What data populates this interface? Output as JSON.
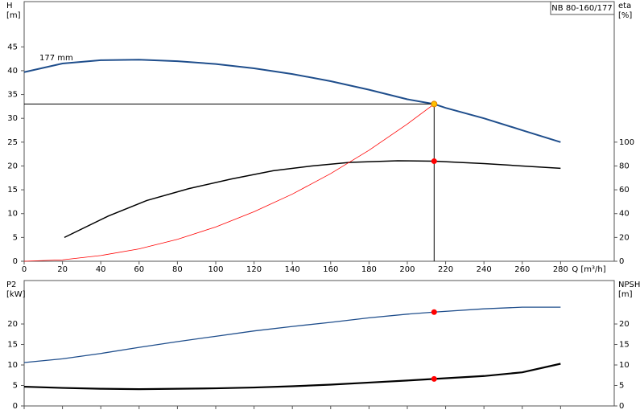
{
  "chart_data": [
    {
      "type": "line",
      "title": "NB 80-160/177",
      "ylabel": "H",
      "yunit": "[m]",
      "y2label": "eta",
      "y2unit": "[%]",
      "xlabel": "Q [m³/h]",
      "annotation": "177 mm",
      "xlim": [
        0,
        308
      ],
      "xticks": [
        0,
        20,
        40,
        60,
        80,
        100,
        120,
        140,
        160,
        180,
        200,
        220,
        240,
        260,
        280
      ],
      "ylim": [
        0,
        54.5
      ],
      "yticks": [
        0,
        5,
        10,
        15,
        20,
        25,
        30,
        35,
        40,
        45
      ],
      "y2lim": [
        0,
        218
      ],
      "y2ticks": [
        0,
        20,
        40,
        60,
        80,
        100
      ],
      "series": [
        {
          "color": "#1f4e8c",
          "width": 2,
          "x": [
            0,
            20,
            40,
            60,
            80,
            100,
            120,
            140,
            160,
            180,
            200,
            214,
            220,
            240,
            260,
            280
          ],
          "values": [
            39.7,
            41.5,
            42.2,
            42.3,
            42.0,
            41.4,
            40.5,
            39.3,
            37.8,
            36.0,
            34.0,
            33.0,
            32.2,
            30.0,
            27.5,
            25.0
          ],
          "duty": {
            "x": 214,
            "y": 33,
            "color": "#ffc000"
          }
        },
        {
          "color": "#000000",
          "width": 1.5,
          "axis": "y2",
          "x": [
            21,
            44,
            64,
            86,
            108,
            130,
            150,
            170,
            195,
            214,
            240,
            260,
            280
          ],
          "values": [
            20,
            38,
            51,
            61,
            69,
            76,
            80,
            83,
            84.4,
            84,
            82,
            80,
            78
          ],
          "duty": {
            "x": 214,
            "y": 84,
            "color": "#ff0000"
          }
        },
        {
          "color": "#ff0000",
          "width": 0.8,
          "x": [
            0,
            20,
            40,
            60,
            80,
            100,
            120,
            140,
            160,
            180,
            200,
            214
          ],
          "values": [
            0,
            0.3,
            1.2,
            2.6,
            4.6,
            7.2,
            10.4,
            14.1,
            18.4,
            23.3,
            28.8,
            33.0
          ]
        }
      ]
    },
    {
      "type": "line",
      "ylabel": "P2",
      "yunit": "[kW]",
      "y2label": "NPSH",
      "y2unit": "[m]",
      "xlim": [
        0,
        308
      ],
      "xticks": [
        0,
        20,
        40,
        60,
        80,
        100,
        120,
        140,
        160,
        180,
        200,
        220,
        240,
        260,
        280
      ],
      "ylim": [
        0,
        30.6
      ],
      "yticks": [
        0,
        5,
        10,
        15,
        20
      ],
      "y2lim": [
        0,
        30.6
      ],
      "y2ticks": [
        0,
        5,
        10,
        15,
        20
      ],
      "series": [
        {
          "color": "#1f4e8c",
          "width": 1.3,
          "x": [
            0,
            20,
            40,
            60,
            80,
            100,
            120,
            140,
            160,
            180,
            200,
            214,
            240,
            260,
            280
          ],
          "values": [
            10.6,
            11.5,
            12.8,
            14.3,
            15.7,
            17.0,
            18.3,
            19.4,
            20.4,
            21.5,
            22.4,
            22.9,
            23.7,
            24.1,
            24.1
          ],
          "duty": {
            "x": 214,
            "y": 22.9,
            "color": "#ff0000"
          }
        },
        {
          "color": "#000000",
          "width": 2.2,
          "axis": "y2",
          "x": [
            0,
            20,
            40,
            60,
            80,
            100,
            120,
            140,
            160,
            180,
            200,
            214,
            240,
            260,
            280
          ],
          "values": [
            4.7,
            4.4,
            4.2,
            4.1,
            4.2,
            4.3,
            4.5,
            4.8,
            5.2,
            5.7,
            6.2,
            6.6,
            7.3,
            8.2,
            10.3
          ],
          "duty": {
            "x": 214,
            "y": 6.6,
            "color": "#ff0000"
          }
        }
      ]
    }
  ]
}
